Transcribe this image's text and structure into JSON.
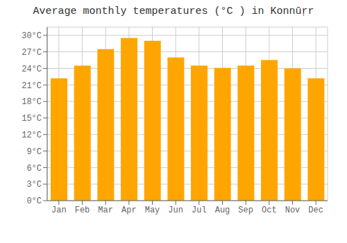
{
  "chart_data": {
    "type": "bar",
    "title": "Average monthly temperatures (°C ) in Konnūṛr",
    "categories": [
      "Jan",
      "Feb",
      "Mar",
      "Apr",
      "May",
      "Jun",
      "Jul",
      "Aug",
      "Sep",
      "Oct",
      "Nov",
      "Dec"
    ],
    "values": [
      22.2,
      24.5,
      27.5,
      29.5,
      29.0,
      26.0,
      24.5,
      24.1,
      24.5,
      25.5,
      24.0,
      22.2
    ],
    "color": "#FFA500",
    "ylim": [
      0,
      31.5
    ],
    "yticks": [
      {
        "value": 0,
        "label": "0°C"
      },
      {
        "value": 3,
        "label": "3°C"
      },
      {
        "value": 6,
        "label": "6°C"
      },
      {
        "value": 9,
        "label": "9°C"
      },
      {
        "value": 12,
        "label": "12°C"
      },
      {
        "value": 15,
        "label": "15°C"
      },
      {
        "value": 18,
        "label": "18°C"
      },
      {
        "value": 21,
        "label": "21°C"
      },
      {
        "value": 24,
        "label": "24°C"
      },
      {
        "value": 27,
        "label": "27°C"
      },
      {
        "value": 30,
        "label": "30°C"
      }
    ],
    "grid": true
  }
}
